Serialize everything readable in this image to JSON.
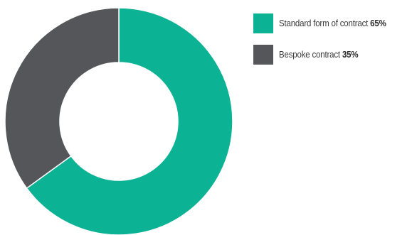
{
  "chart_data": {
    "type": "pie",
    "donut": true,
    "categories": [
      "Standard form of contract",
      "Bespoke contract"
    ],
    "values": [
      65,
      35
    ],
    "value_labels": [
      "65%",
      "35%"
    ],
    "colors": [
      "#0bb394",
      "#55565a"
    ],
    "legend_position": "right",
    "title": ""
  }
}
